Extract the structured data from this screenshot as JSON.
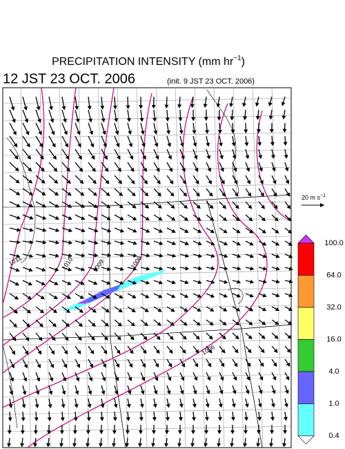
{
  "header": {
    "title": "PRECIPITATION INTENSITY (mm hr",
    "title_exponent": "−1",
    "title_close": ")",
    "valid_time": "12 JST 23 OCT. 2006",
    "init_time": "(init. 9 JST 23 OCT. 2006)"
  },
  "wind_scale": {
    "label": "20 m s",
    "exponent": "−1"
  },
  "colorbar": {
    "labels": [
      "100.0",
      "64.0",
      "32.0",
      "16.0",
      "4.0",
      "1.0",
      "0.4"
    ],
    "colors": [
      "#cc33ff",
      "#ff0000",
      "#ff9933",
      "#ffff66",
      "#33cc33",
      "#6666ff",
      "#66ffff",
      "#ffffff"
    ]
  },
  "isobar_labels": [
    "1011",
    "1010",
    "1009",
    "1008",
    "1006"
  ]
}
